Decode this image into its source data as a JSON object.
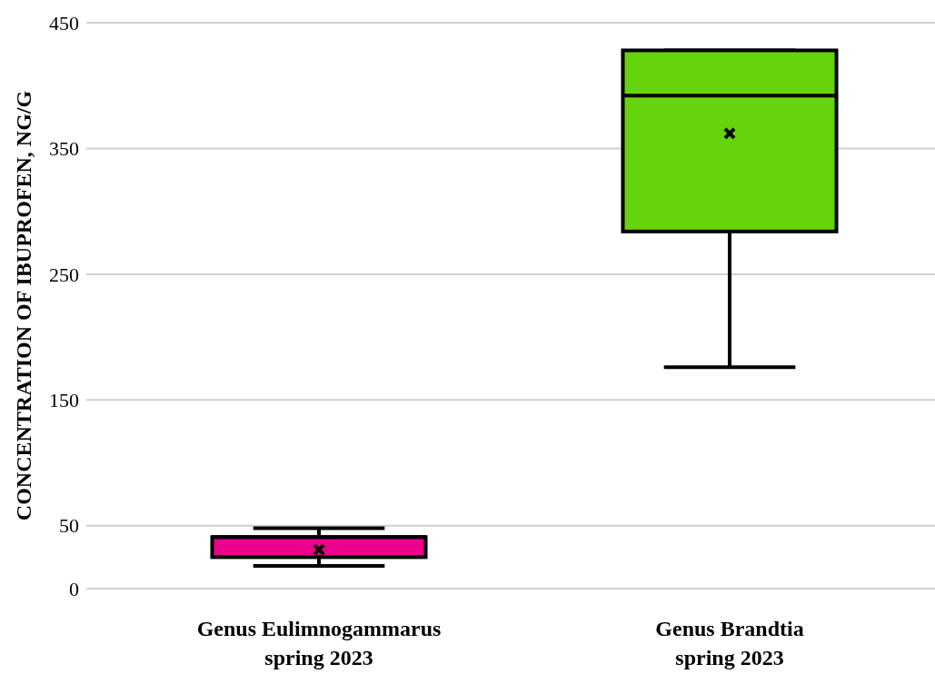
{
  "chart_data": {
    "type": "box",
    "ylabel": "CONCENTRATION OF IBUPROFEN, NG/G",
    "categories": [
      "Genus Eulimnogammarus\nspring 2023",
      "Genus Brandtia\nspring 2023"
    ],
    "boxes": [
      {
        "low": 18,
        "q1": 25,
        "median": 41,
        "q3": 41,
        "high": 48,
        "mean": 31
      },
      {
        "low": 176,
        "q1": 284,
        "median": 392,
        "q3": 428,
        "high": 428,
        "mean": 362
      }
    ],
    "colors": [
      "#ec008c",
      "#66d40c"
    ],
    "ylim": [
      0,
      450
    ],
    "yticks": [
      0,
      50,
      150,
      250,
      350,
      450
    ],
    "grid": "y",
    "marker": "cross"
  }
}
